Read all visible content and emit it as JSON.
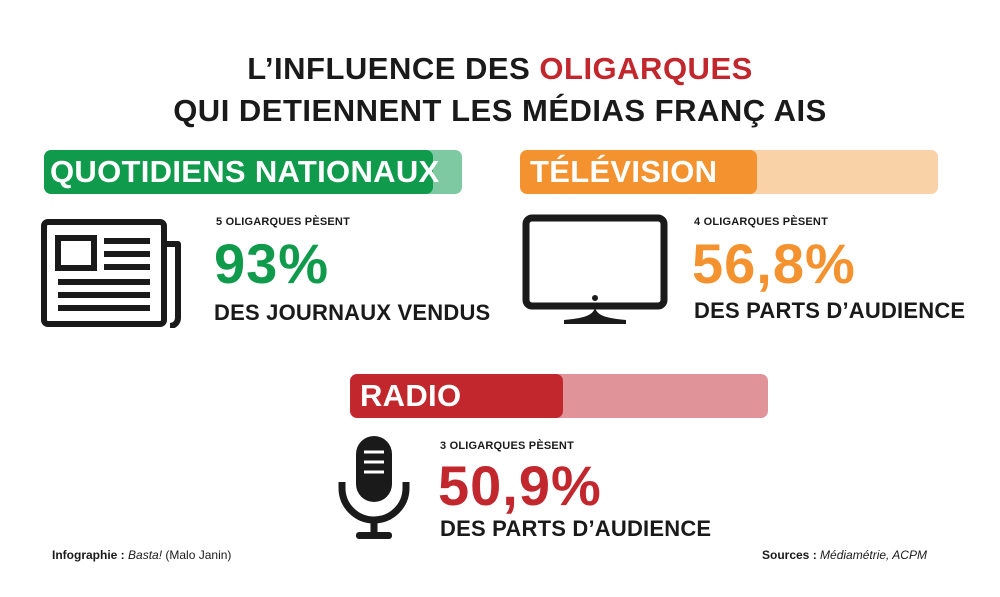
{
  "title": {
    "line1_prefix": "L’INFLUENCE DES ",
    "line1_highlight": "OLIGARQUES",
    "line2": "QUI DETIENNENT LES MÉDIAS FRANÇ AIS"
  },
  "colors": {
    "press": "#0f9a4c",
    "press_track": "#7fc9a2",
    "tv": "#f3922e",
    "tv_track": "#f9d2a8",
    "radio": "#c1272d",
    "radio_track": "#e0949a",
    "text": "#1a1a1a"
  },
  "chart_data": {
    "type": "bar",
    "categories": [
      "QUOTIDIENS NATIONAUX",
      "TÉLÉVISION",
      "RADIO"
    ],
    "values": [
      93,
      56.8,
      50.9
    ],
    "value_labels": [
      "93%",
      "56,8%",
      "50,9%"
    ],
    "oligarch_notes": [
      "5 OLIGARQUES PÈSENT",
      "4 OLIGARQUES PÈSENT",
      "3 OLIGARQUES PÈSENT"
    ],
    "descriptions": [
      "DES JOURNAUX VENDUS",
      "DES PARTS D’AUDIENCE",
      "DES PARTS D’AUDIENCE"
    ],
    "ylim": [
      0,
      100
    ]
  },
  "icons": [
    "newspaper-icon",
    "television-icon",
    "microphone-icon"
  ],
  "footer": {
    "credit_label": "Infographie :",
    "credit_source": "Basta!",
    "credit_author": "(Malo Janin)",
    "sources_label": "Sources :",
    "sources_value": "Médiamétrie, ACPM"
  }
}
